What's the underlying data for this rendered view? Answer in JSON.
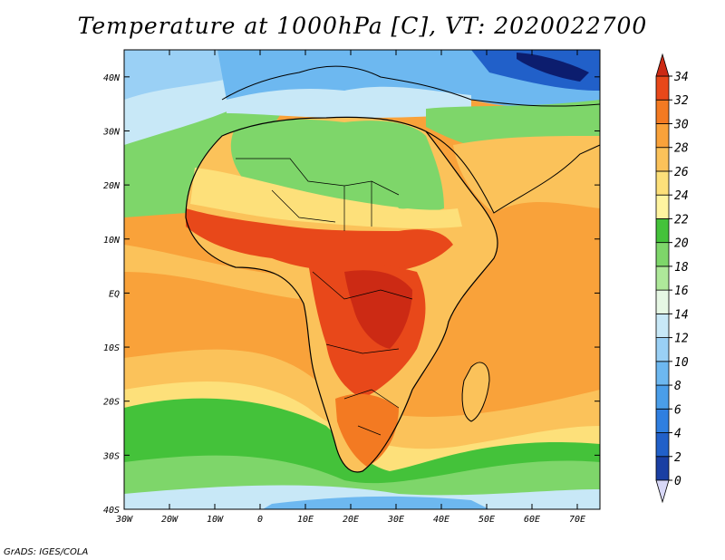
{
  "title": "Temperature at 1000hPa [C], VT: 2020022700",
  "credit": "GrADS: IGES/COLA",
  "map": {
    "lon_range": [
      -30,
      75
    ],
    "lat_range": [
      -40,
      45
    ],
    "lon_ticks": [
      "30W",
      "20W",
      "10W",
      "0",
      "10E",
      "20E",
      "30E",
      "40E",
      "50E",
      "60E",
      "70E"
    ],
    "lat_ticks": [
      "40N",
      "30N",
      "20N",
      "10N",
      "EQ",
      "10S",
      "20S",
      "30S",
      "40S"
    ],
    "lon_tick_values": [
      -30,
      -20,
      -10,
      0,
      10,
      20,
      30,
      40,
      50,
      60,
      70
    ],
    "lat_tick_values": [
      40,
      30,
      20,
      10,
      0,
      -10,
      -20,
      -30,
      -40
    ]
  },
  "colorbar": {
    "labels": [
      "0",
      "2",
      "4",
      "6",
      "8",
      "10",
      "12",
      "14",
      "16",
      "18",
      "20",
      "22",
      "24",
      "26",
      "28",
      "30",
      "32",
      "34"
    ],
    "colors": [
      "#0c1d6e",
      "#1a3fa3",
      "#2160c9",
      "#2f7fe0",
      "#4a9ee9",
      "#6db8f0",
      "#9ad0f5",
      "#c8e8f7",
      "#e6f7e4",
      "#aee89a",
      "#7ed66a",
      "#44c23a",
      "#fff4a0",
      "#fde07a",
      "#fbc25a",
      "#f9a23a",
      "#f37a22",
      "#e8481a",
      "#cc2a14"
    ]
  },
  "regions": [
    {
      "name": "ocean-tropical",
      "color": "#f9a23a"
    },
    {
      "name": "sahara-green",
      "color": "#7ed66a"
    },
    {
      "name": "central-africa-hot",
      "color": "#e8481a"
    }
  ]
}
